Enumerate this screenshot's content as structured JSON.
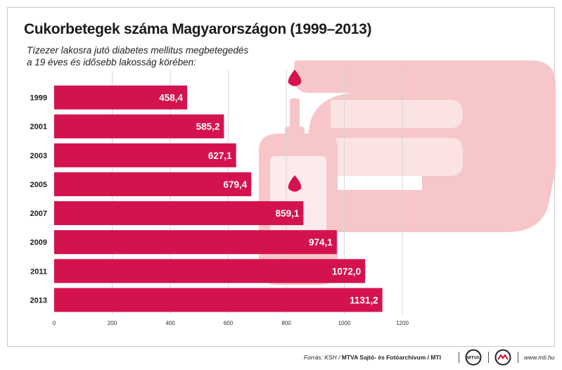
{
  "chart_data": {
    "type": "bar",
    "orientation": "horizontal",
    "title": "Cukorbetegek száma Magyarországon (1999–2013)",
    "subtitle": [
      "Tízezer lakosra jutó diabetes mellitus megbetegedés",
      "a 19 éves és idősebb lakosság körében:"
    ],
    "categories": [
      "1999",
      "2001",
      "2003",
      "2005",
      "2007",
      "2009",
      "2011",
      "2013"
    ],
    "values": [
      458.4,
      585.2,
      627.1,
      679.4,
      859.1,
      974.1,
      1072.0,
      1131.2
    ],
    "value_labels": [
      "458,4",
      "585,2",
      "627,1",
      "679,4",
      "859,1",
      "974,1",
      "1072,0",
      "1131,2"
    ],
    "xlim": [
      0,
      1200
    ],
    "xticks": [
      0,
      200,
      400,
      600,
      800,
      1000,
      1200
    ],
    "grid": "vertical",
    "bar_color": "#d4124e",
    "illustration_color": "#f6c6c8",
    "drop_color": "#d4124e"
  },
  "footer": {
    "source_prefix": "Forrás: KSH /",
    "source_org": "MTVA Sajtó- és Fotóarchívum / MTI",
    "logo_mtva_text": "MTVA",
    "website": "www.mti.hu"
  }
}
